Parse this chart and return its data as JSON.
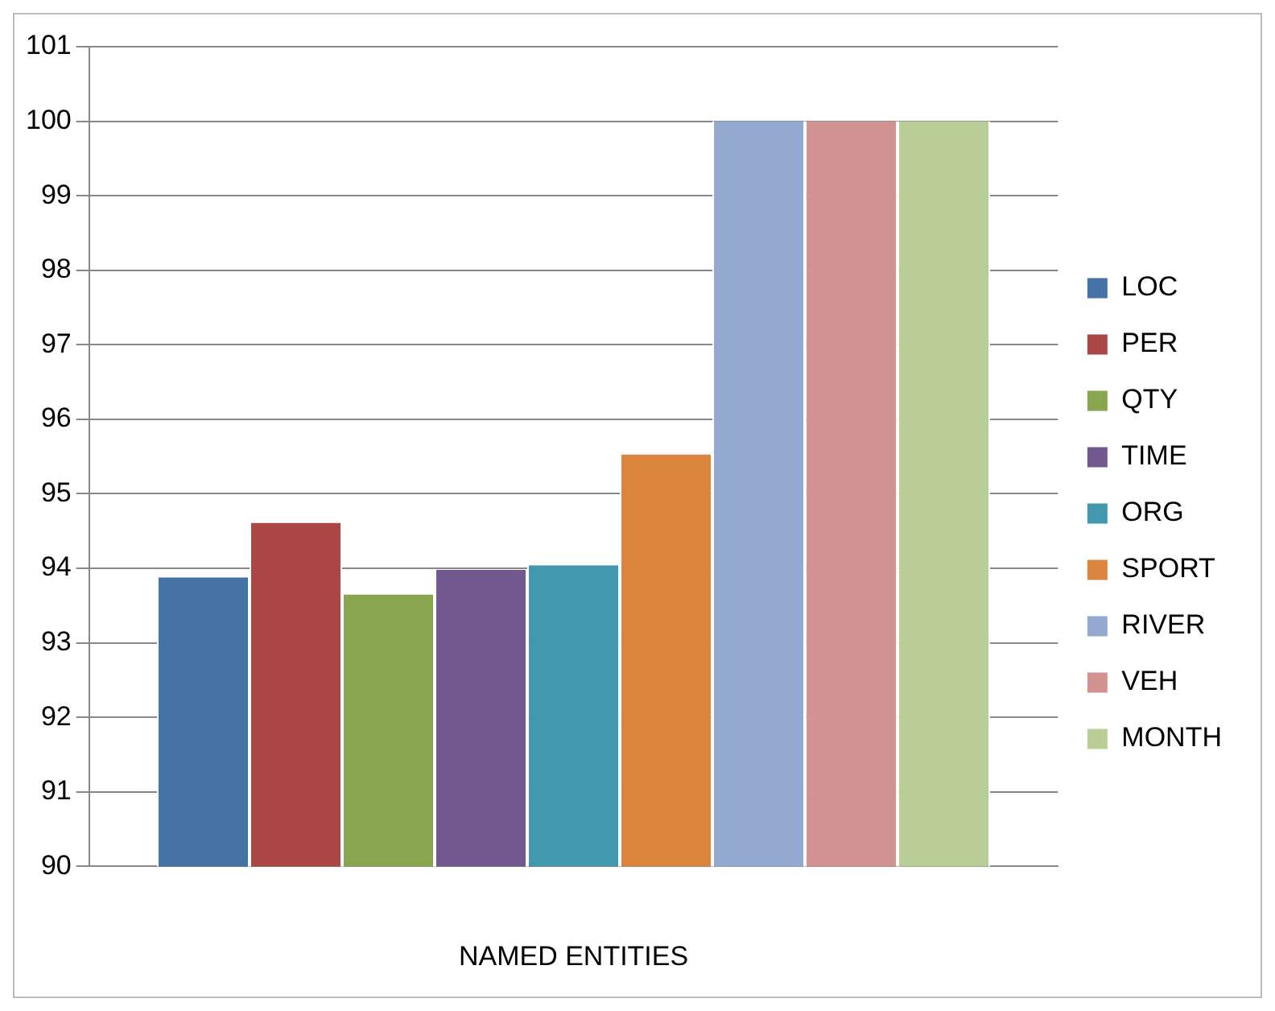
{
  "chart_data": {
    "type": "bar",
    "xlabel": "NAMED ENTITIES",
    "categories": [
      null
    ],
    "series": [
      {
        "name": "LOC",
        "color": "#4572a7",
        "values": [
          93.88
        ]
      },
      {
        "name": "PER",
        "color": "#aa4643",
        "values": [
          94.61
        ]
      },
      {
        "name": "QTY",
        "color": "#89a54e",
        "values": [
          93.65
        ]
      },
      {
        "name": "TIME",
        "color": "#71588f",
        "values": [
          93.98
        ]
      },
      {
        "name": "ORG",
        "color": "#4198af",
        "values": [
          94.04
        ]
      },
      {
        "name": "SPORT",
        "color": "#db843d",
        "values": [
          95.53
        ]
      },
      {
        "name": "RIVER",
        "color": "#93a9cf",
        "values": [
          100
        ]
      },
      {
        "name": "VEH",
        "color": "#d19392",
        "values": [
          100
        ]
      },
      {
        "name": "MONTH",
        "color": "#b9cd96",
        "values": [
          100
        ]
      }
    ],
    "ylim": [
      90,
      101
    ],
    "yticks": [
      90,
      91,
      92,
      93,
      94,
      95,
      96,
      97,
      98,
      99,
      100,
      101
    ],
    "grid": "y",
    "legend": "right"
  }
}
